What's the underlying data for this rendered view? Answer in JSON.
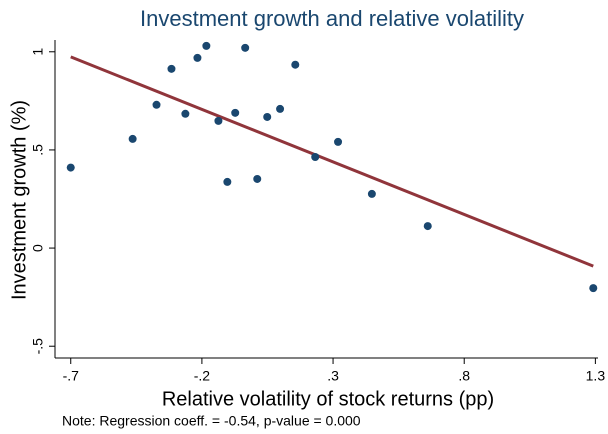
{
  "chart_data": {
    "type": "scatter",
    "title": "Investment growth and relative volatility",
    "x_label": "Relative volatility of stock returns (pp)",
    "y_label": "Investment growth (%)",
    "note": "Note: Regression coeff. = -0.54, p-value = 0.000",
    "x": [
      -0.7,
      -0.464,
      -0.373,
      -0.316,
      -0.263,
      -0.217,
      -0.183,
      -0.137,
      -0.103,
      -0.073,
      -0.035,
      0.011,
      0.049,
      0.098,
      0.156,
      0.232,
      0.319,
      0.448,
      0.661,
      1.292
    ],
    "values": [
      0.41,
      0.556,
      0.73,
      0.913,
      0.684,
      0.969,
      1.03,
      0.648,
      0.337,
      0.689,
      1.02,
      0.352,
      0.668,
      0.709,
      0.934,
      0.464,
      0.541,
      0.276,
      0.112,
      -0.204
    ],
    "color": "#1a476f",
    "fit": {
      "x": [
        -0.7,
        1.292
      ],
      "values": [
        0.974,
        -0.092
      ],
      "color": "#90353b"
    },
    "xlim": [
      -0.76,
      1.31
    ],
    "ylim": [
      -0.56,
      1.06
    ],
    "xticks": [
      {
        "value": -0.7,
        "label": "-.7"
      },
      {
        "value": -0.2,
        "label": "-.2"
      },
      {
        "value": 0.3,
        "label": ".3"
      },
      {
        "value": 0.8,
        "label": ".8"
      },
      {
        "value": 1.3,
        "label": "1.3"
      }
    ],
    "yticks": [
      {
        "value": -0.5,
        "label": "-.5"
      },
      0,
      {
        "value": 0.5,
        "label": ".5"
      },
      1
    ],
    "grid": false
  }
}
